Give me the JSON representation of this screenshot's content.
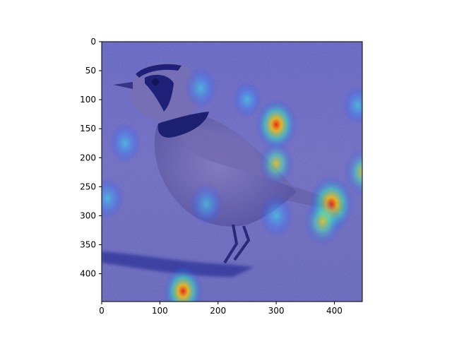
{
  "figure": {
    "subject": "horned-lark-photo",
    "overlay": "attention-heatmap",
    "colormap": "jet"
  },
  "axes": {
    "x_ticks": [
      "0",
      "100",
      "200",
      "300",
      "400"
    ],
    "y_ticks": [
      "0",
      "50",
      "100",
      "150",
      "200",
      "250",
      "300",
      "350",
      "400"
    ],
    "x_range": [
      0,
      448
    ],
    "y_range": [
      0,
      448
    ]
  },
  "heatmap_hotspots": [
    {
      "x": 395,
      "y": 280,
      "intensity": 1.0
    },
    {
      "x": 300,
      "y": 143,
      "intensity": 0.85
    },
    {
      "x": 140,
      "y": 430,
      "intensity": 0.8
    },
    {
      "x": 450,
      "y": 225,
      "intensity": 0.75
    },
    {
      "x": 300,
      "y": 210,
      "intensity": 0.6
    },
    {
      "x": 380,
      "y": 310,
      "intensity": 0.7
    },
    {
      "x": 170,
      "y": 80,
      "intensity": 0.5
    },
    {
      "x": 40,
      "y": 175,
      "intensity": 0.45
    },
    {
      "x": 10,
      "y": 270,
      "intensity": 0.5
    },
    {
      "x": 180,
      "y": 280,
      "intensity": 0.55
    },
    {
      "x": 300,
      "y": 300,
      "intensity": 0.55
    },
    {
      "x": 440,
      "y": 110,
      "intensity": 0.4
    },
    {
      "x": 250,
      "y": 100,
      "intensity": 0.35
    }
  ]
}
